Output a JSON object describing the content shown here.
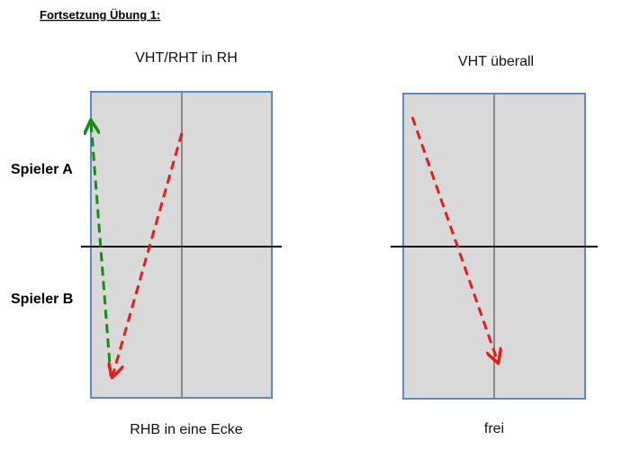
{
  "header": {
    "title": "Fortsetzung Übung 1:"
  },
  "players": [
    "Spieler A",
    "Spieler B"
  ],
  "tables": [
    {
      "caption": "VHT/RHT in RH",
      "footer": "RHB in eine Ecke"
    },
    {
      "caption": "VHT überall",
      "footer": "frei"
    }
  ]
}
